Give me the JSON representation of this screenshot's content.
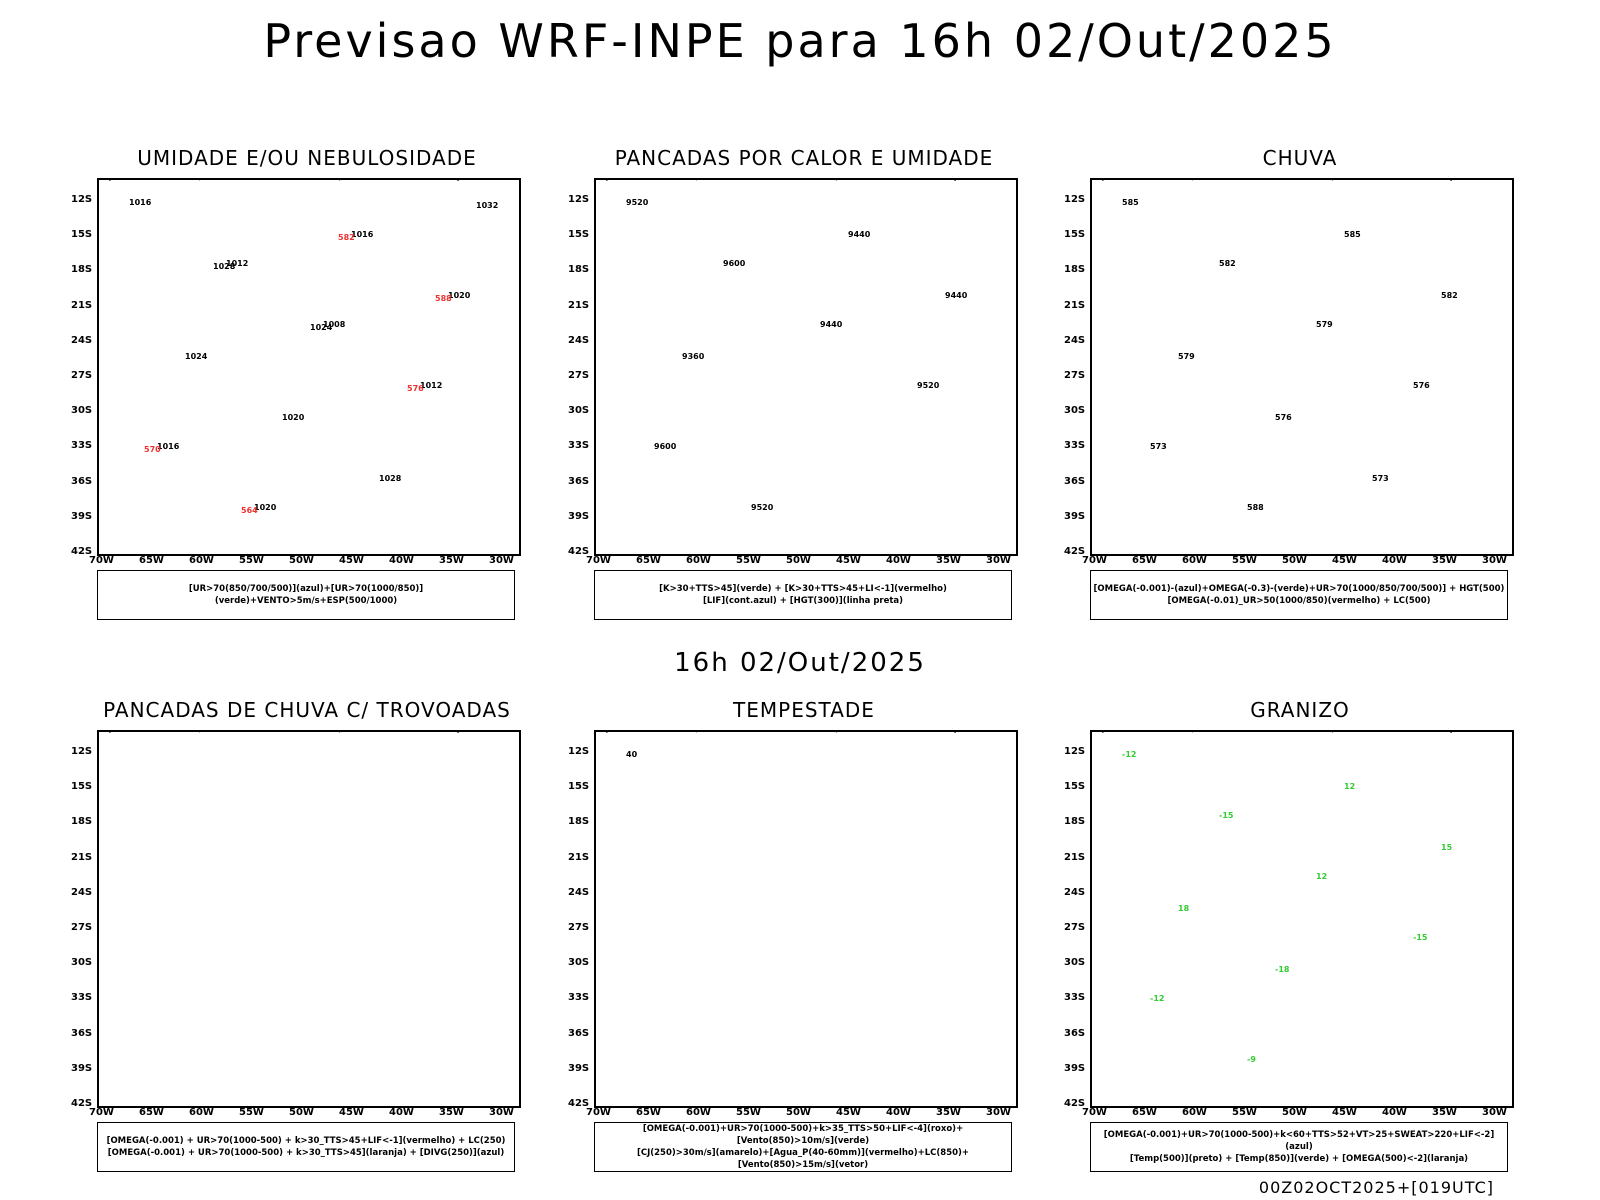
{
  "title": "Previsao WRF-INPE  para 16h 02/Out/2025",
  "subtitle": "16h 02/Out/2025",
  "footer": "00Z02OCT2025+[019UTC]",
  "lat_labels": [
    "12S",
    "15S",
    "18S",
    "21S",
    "24S",
    "27S",
    "30S",
    "33S",
    "36S",
    "39S",
    "42S"
  ],
  "lon_labels": [
    "70W",
    "65W",
    "60W",
    "55W",
    "50W",
    "45W",
    "40W",
    "35W",
    "30W"
  ],
  "colors": {
    "humidity_blue": "#9a9af0",
    "humidity_dark_blue": "#3030e0",
    "green": "#33cc33",
    "red": "#ee3333",
    "dark_teal": "#1f4f4f",
    "blue": "#2255ee",
    "orange": "#ee7722",
    "yellow": "#dddd33"
  },
  "panels": [
    {
      "title": "UMIDADE E/OU NEBULOSIDADE",
      "legend": [
        "[UR>70(850/700/500)](azul)+[UR>70(1000/850)](verde)+VENTO>5m/s+ESP(500/1000)"
      ],
      "labels": [
        "1016",
        "1012",
        "1008",
        "1012",
        "1016",
        "1020",
        "1016",
        "1020",
        "1024",
        "1020",
        "1028",
        "1032",
        "1028",
        "1024",
        "576",
        "570",
        "564",
        "582",
        "588"
      ]
    },
    {
      "title": "PANCADAS POR CALOR E UMIDADE",
      "legend": [
        "[K>30+TTS>45](verde) + [K>30+TTS>45+LI<-1](vermelho)",
        "[LIF](cont.azul) + [HGT(300)](linha preta)"
      ],
      "labels": [
        "9520",
        "9600",
        "9440",
        "9520",
        "9600",
        "9520",
        "9440",
        "9440",
        "9360"
      ]
    },
    {
      "title": "CHUVA",
      "legend": [
        "[OMEGA(-0.001)-(azul)+OMEGA(-0.3)-(verde)+UR>70(1000/850/700/500)] + HGT(500)",
        "[OMEGA(-0.01)_UR>50(1000/850)(vermelho) + LC(500)"
      ],
      "labels": [
        "585",
        "582",
        "579",
        "576",
        "573",
        "588",
        "585",
        "582",
        "579",
        "576",
        "573"
      ]
    },
    {
      "title": "PANCADAS DE CHUVA C/ TROVOADAS",
      "legend": [
        "[OMEGA(-0.001) + UR>70(1000-500) + k>30_TTS>45+LIF<-1](vermelho) + LC(250)",
        "[OMEGA(-0.001) + UR>70(1000-500) + k>30_TTS>45](laranja) + [DIVG(250)](azul)"
      ],
      "labels": []
    },
    {
      "title": "TEMPESTADE",
      "legend": [
        "[OMEGA(-0.001)+UR>70(1000-500)+k>35_TTS>50+LIF<-4](roxo)+[Vento(850)>10m/s](verde)",
        "[CJ(250)>30m/s](amarelo)+[Agua_P(40-60mm)](vermelho)+LC(850)+[Vento(850)>15m/s](vetor)"
      ],
      "labels": [
        "40"
      ]
    },
    {
      "title": "GRANIZO",
      "legend": [
        "[OMEGA(-0.001)+UR>70(1000-500)+k<60+TTS>52+VT>25+SWEAT>220+LIF<-2](azul)",
        "[Temp(500)](preto) + [Temp(850)](verde) + [OMEGA(500)<-2](laranja)"
      ],
      "labels": [
        "-12",
        "-15",
        "12",
        "-15",
        "-12",
        "-9",
        "12",
        "15",
        "18",
        "-18"
      ]
    }
  ]
}
